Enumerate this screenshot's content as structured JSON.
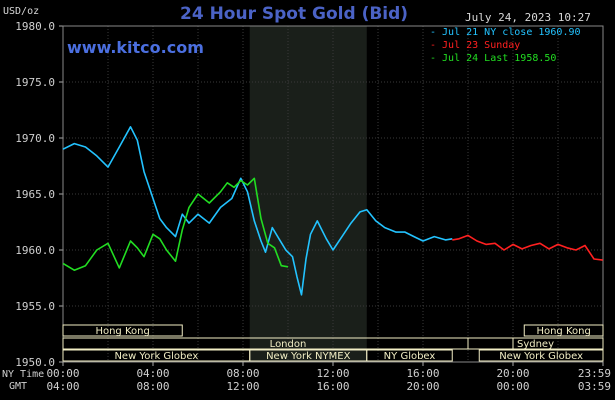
{
  "header": {
    "title": "24 Hour Spot Gold (Bid)",
    "datetime": "July 24, 2023 10:27",
    "unit": "USD/oz",
    "brand": "www.kitco.com"
  },
  "legend": [
    {
      "label": "- Jul 21 NY close 1960.90",
      "color": "#23c3ff"
    },
    {
      "label": "- Jul 23 Sunday",
      "color": "#ff2020"
    },
    {
      "label": "- Jul 24 Last 1958.50",
      "color": "#22dd22"
    }
  ],
  "timezones": {
    "ny_label": "NY Time",
    "gmt_label": "GMT",
    "ny_ticks": [
      "00:00",
      "04:00",
      "08:00",
      "12:00",
      "16:00",
      "20:00",
      "23:59"
    ],
    "gmt_ticks": [
      "04:00",
      "08:00",
      "12:00",
      "16:00",
      "20:00",
      "00:00",
      "03:59"
    ]
  },
  "sessions": [
    {
      "label": "Hong Kong",
      "row": 0,
      "start": 0,
      "end": 5.3
    },
    {
      "label": "Hong Kong",
      "row": 0,
      "start": 20.5,
      "end": 24
    },
    {
      "label": "London",
      "row": 1,
      "start": 0,
      "end": 20
    },
    {
      "label": "Sydney",
      "row": 1,
      "start": 18,
      "end": 24
    },
    {
      "label": "New York Globex",
      "row": 2,
      "start": 0,
      "end": 8.3
    },
    {
      "label": "New York NYMEX",
      "row": 2,
      "start": 8.3,
      "end": 13.5
    },
    {
      "label": "NY Globex",
      "row": 2,
      "start": 13.5,
      "end": 17.3
    },
    {
      "label": "New York Globex",
      "row": 2,
      "start": 18.5,
      "end": 24
    }
  ],
  "colors": {
    "bg": "#000000",
    "grid": "#3a3a3a",
    "nymex_shade": "#1a1f1a",
    "session_box": "#f2eec5",
    "session_border": "#b0a870",
    "session_text": "#1a1a1a"
  },
  "chart_data": {
    "type": "line",
    "title": "24 Hour Spot Gold (Bid)",
    "xlabel": "",
    "ylabel": "USD/oz",
    "xlim": [
      0,
      24
    ],
    "ylim": [
      1950,
      1980
    ],
    "yticks": [
      "1950.0",
      "1955.0",
      "1960.0",
      "1965.0",
      "1970.0",
      "1975.0",
      "1980.0"
    ],
    "grid": true,
    "legend_position": "top-right",
    "shaded_region": {
      "start": 8.3,
      "end": 13.5,
      "label": "New York NYMEX"
    },
    "series": [
      {
        "name": "Jul 21 NY close 1960.90",
        "color": "#23c3ff",
        "x": [
          0,
          0.5,
          1.0,
          1.5,
          2.0,
          2.5,
          3.0,
          3.3,
          3.6,
          4.0,
          4.3,
          4.6,
          5.0,
          5.3,
          5.6,
          6.0,
          6.5,
          7.0,
          7.5,
          7.9,
          8.2,
          8.5,
          8.8,
          9.0,
          9.3,
          9.6,
          9.9,
          10.2,
          10.4,
          10.6,
          10.8,
          11.0,
          11.3,
          11.7,
          12.0,
          12.4,
          12.8,
          13.2,
          13.5,
          13.9,
          14.3,
          14.8,
          15.2,
          15.6,
          16.0,
          16.5,
          17.0,
          17.3
        ],
        "values": [
          1969.0,
          1969.5,
          1969.2,
          1968.4,
          1967.4,
          1969.2,
          1971.0,
          1969.8,
          1967.0,
          1964.6,
          1962.8,
          1962.0,
          1961.2,
          1963.2,
          1962.4,
          1963.2,
          1962.4,
          1963.8,
          1964.6,
          1966.4,
          1965.2,
          1962.6,
          1960.8,
          1959.8,
          1962.0,
          1961.0,
          1960.0,
          1959.4,
          1957.6,
          1956.0,
          1959.2,
          1961.4,
          1962.6,
          1961.0,
          1960.0,
          1961.2,
          1962.4,
          1963.4,
          1963.6,
          1962.6,
          1962.0,
          1961.6,
          1961.6,
          1961.2,
          1960.8,
          1961.2,
          1960.9,
          1961.0
        ]
      },
      {
        "name": "Jul 23 Sunday",
        "color": "#ff2020",
        "x": [
          17.3,
          17.6,
          18.0,
          18.4,
          18.8,
          19.2,
          19.6,
          20.0,
          20.4,
          20.8,
          21.2,
          21.6,
          22.0,
          22.4,
          22.8,
          23.2,
          23.6,
          23.99
        ],
        "values": [
          1960.9,
          1961.0,
          1961.3,
          1960.8,
          1960.5,
          1960.6,
          1960.0,
          1960.5,
          1960.1,
          1960.4,
          1960.6,
          1960.1,
          1960.5,
          1960.2,
          1960.0,
          1960.4,
          1959.2,
          1959.1
        ]
      },
      {
        "name": "Jul 24 Last 1958.50",
        "color": "#22dd22",
        "x": [
          0,
          0.5,
          1.0,
          1.5,
          2.0,
          2.5,
          3.0,
          3.3,
          3.6,
          4.0,
          4.3,
          4.6,
          5.0,
          5.3,
          5.6,
          6.0,
          6.5,
          7.0,
          7.3,
          7.6,
          7.9,
          8.2,
          8.5,
          8.8,
          9.1,
          9.4,
          9.7,
          10.0
        ],
        "values": [
          1958.8,
          1958.2,
          1958.6,
          1960.0,
          1960.6,
          1958.4,
          1960.8,
          1960.2,
          1959.4,
          1961.4,
          1961.0,
          1960.0,
          1959.0,
          1961.8,
          1963.8,
          1965.0,
          1964.2,
          1965.2,
          1966.0,
          1965.6,
          1966.2,
          1965.8,
          1966.4,
          1962.8,
          1960.6,
          1960.2,
          1958.6,
          1958.5
        ]
      }
    ]
  }
}
